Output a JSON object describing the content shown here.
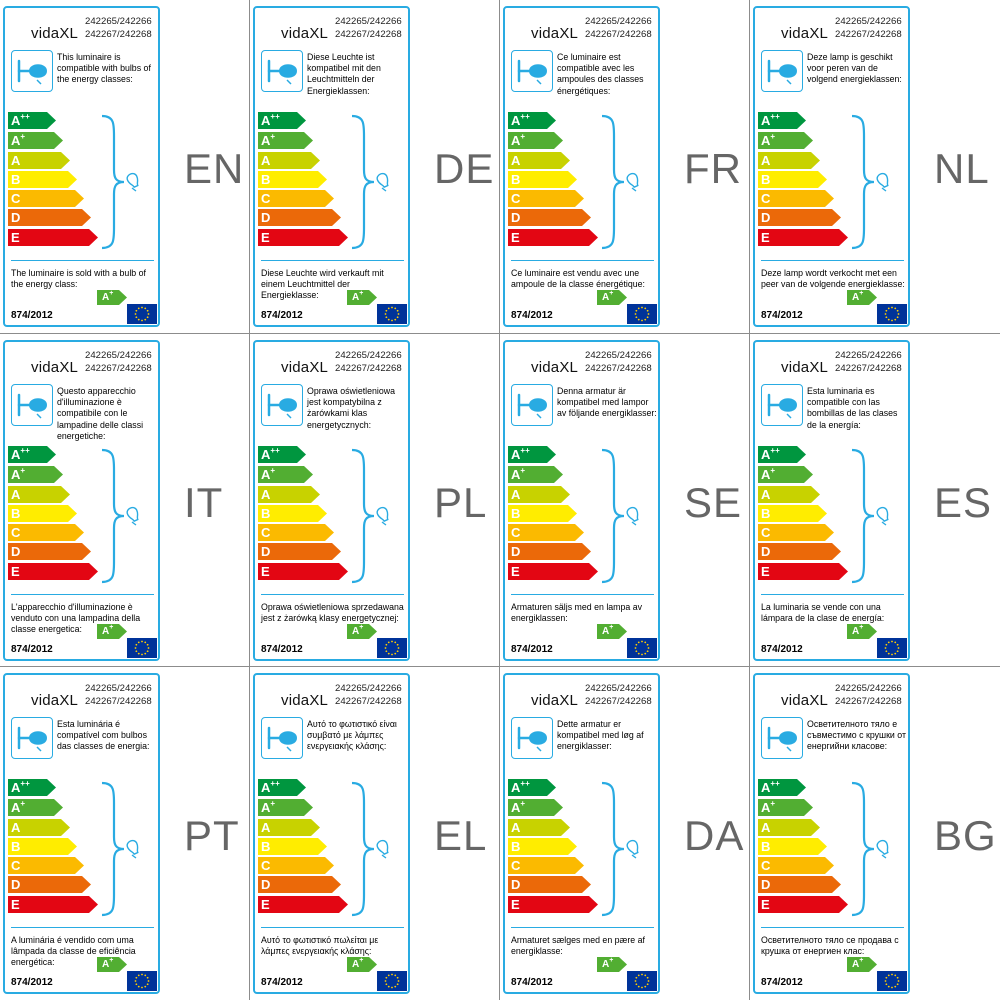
{
  "brand": "vidaXL",
  "codes_line1": "242265/242266",
  "codes_line2": "242267/242268",
  "regulation": "874/2012",
  "rating": {
    "letter": "A",
    "sup": "+"
  },
  "classes": [
    {
      "letter": "A",
      "sup": "++",
      "color": "#00963f"
    },
    {
      "letter": "A",
      "sup": "+",
      "color": "#52ae32"
    },
    {
      "letter": "A",
      "sup": "",
      "color": "#c8d200"
    },
    {
      "letter": "B",
      "sup": "",
      "color": "#ffed00"
    },
    {
      "letter": "C",
      "sup": "",
      "color": "#fbba00"
    },
    {
      "letter": "D",
      "sup": "",
      "color": "#eb6909"
    },
    {
      "letter": "E",
      "sup": "",
      "color": "#e30613"
    }
  ],
  "accent_color": "#29abe2",
  "rating_color": "#52ae32",
  "eu_flag_color": "#003399",
  "icons": [
    "lamp-icon",
    "bulb-icon",
    "eu-flag-icon"
  ],
  "labels": [
    {
      "lang": "EN",
      "compat": "This luminaire is compatible with bulbs of the energy classes:",
      "sold": "The luminaire is sold with a bulb of the energy class:"
    },
    {
      "lang": "DE",
      "compat": "Diese Leuchte ist kompatibel mit den Leuchtmitteln der Energieklassen:",
      "sold": "Diese Leuchte wird verkauft mit einem Leuchtmittel der Energieklasse:"
    },
    {
      "lang": "FR",
      "compat": "Ce luminaire est compatible avec les ampoules des classes énergétiques:",
      "sold": "Ce luminaire est vendu avec une ampoule de la classe énergétique:"
    },
    {
      "lang": "NL",
      "compat": "Deze lamp is geschikt voor peren van de volgend energieklassen:",
      "sold": "Deze lamp wordt verkocht met een peer van de volgende energieklasse:"
    },
    {
      "lang": "IT",
      "compat": "Questo apparecchio d'illuminazione è compatibile con le lampadine delle classi energetiche:",
      "sold": "L'apparecchio d'illuminazione è venduto con una lampadina della classe energetica:"
    },
    {
      "lang": "PL",
      "compat": "Oprawa oświetleniowa jest kompatybilna z żarówkami klas energetycznych:",
      "sold": "Oprawa oświetleniowa sprzedawana jest z żarówką klasy energetycznej:"
    },
    {
      "lang": "SE",
      "compat": "Denna armatur är kompatibel med lampor av följande energiklasser:",
      "sold": "Armaturen säljs med en lampa av energiklassen:"
    },
    {
      "lang": "ES",
      "compat": "Esta luminaria es compatible con las bombillas de las clases de la energía:",
      "sold": "La luminaria se vende con una lámpara de la clase de energía:"
    },
    {
      "lang": "PT",
      "compat": "Esta luminária é compatível com bulbos das classes de energia:",
      "sold": "A luminária é vendido com uma lâmpada da classe de eficiência energética:"
    },
    {
      "lang": "EL",
      "compat": "Αυτό το φωτιστικό είναι συμβατό με λάμπες ενεργειακής κλάσης:",
      "sold": "Αυτό το φωτιστικό πωλείται με λάμπες ενεργειακής κλάσης:"
    },
    {
      "lang": "DA",
      "compat": "Dette armatur er kompatibel med løg af energiklasser:",
      "sold": "Armaturet sælges med en pære af energiklasse:"
    },
    {
      "lang": "BG",
      "compat": "Осветителното тяло е съвместимо с крушки от енергийни класове:",
      "sold": "Осветителното тяло се продава с крушка от енергиен клас:"
    }
  ]
}
